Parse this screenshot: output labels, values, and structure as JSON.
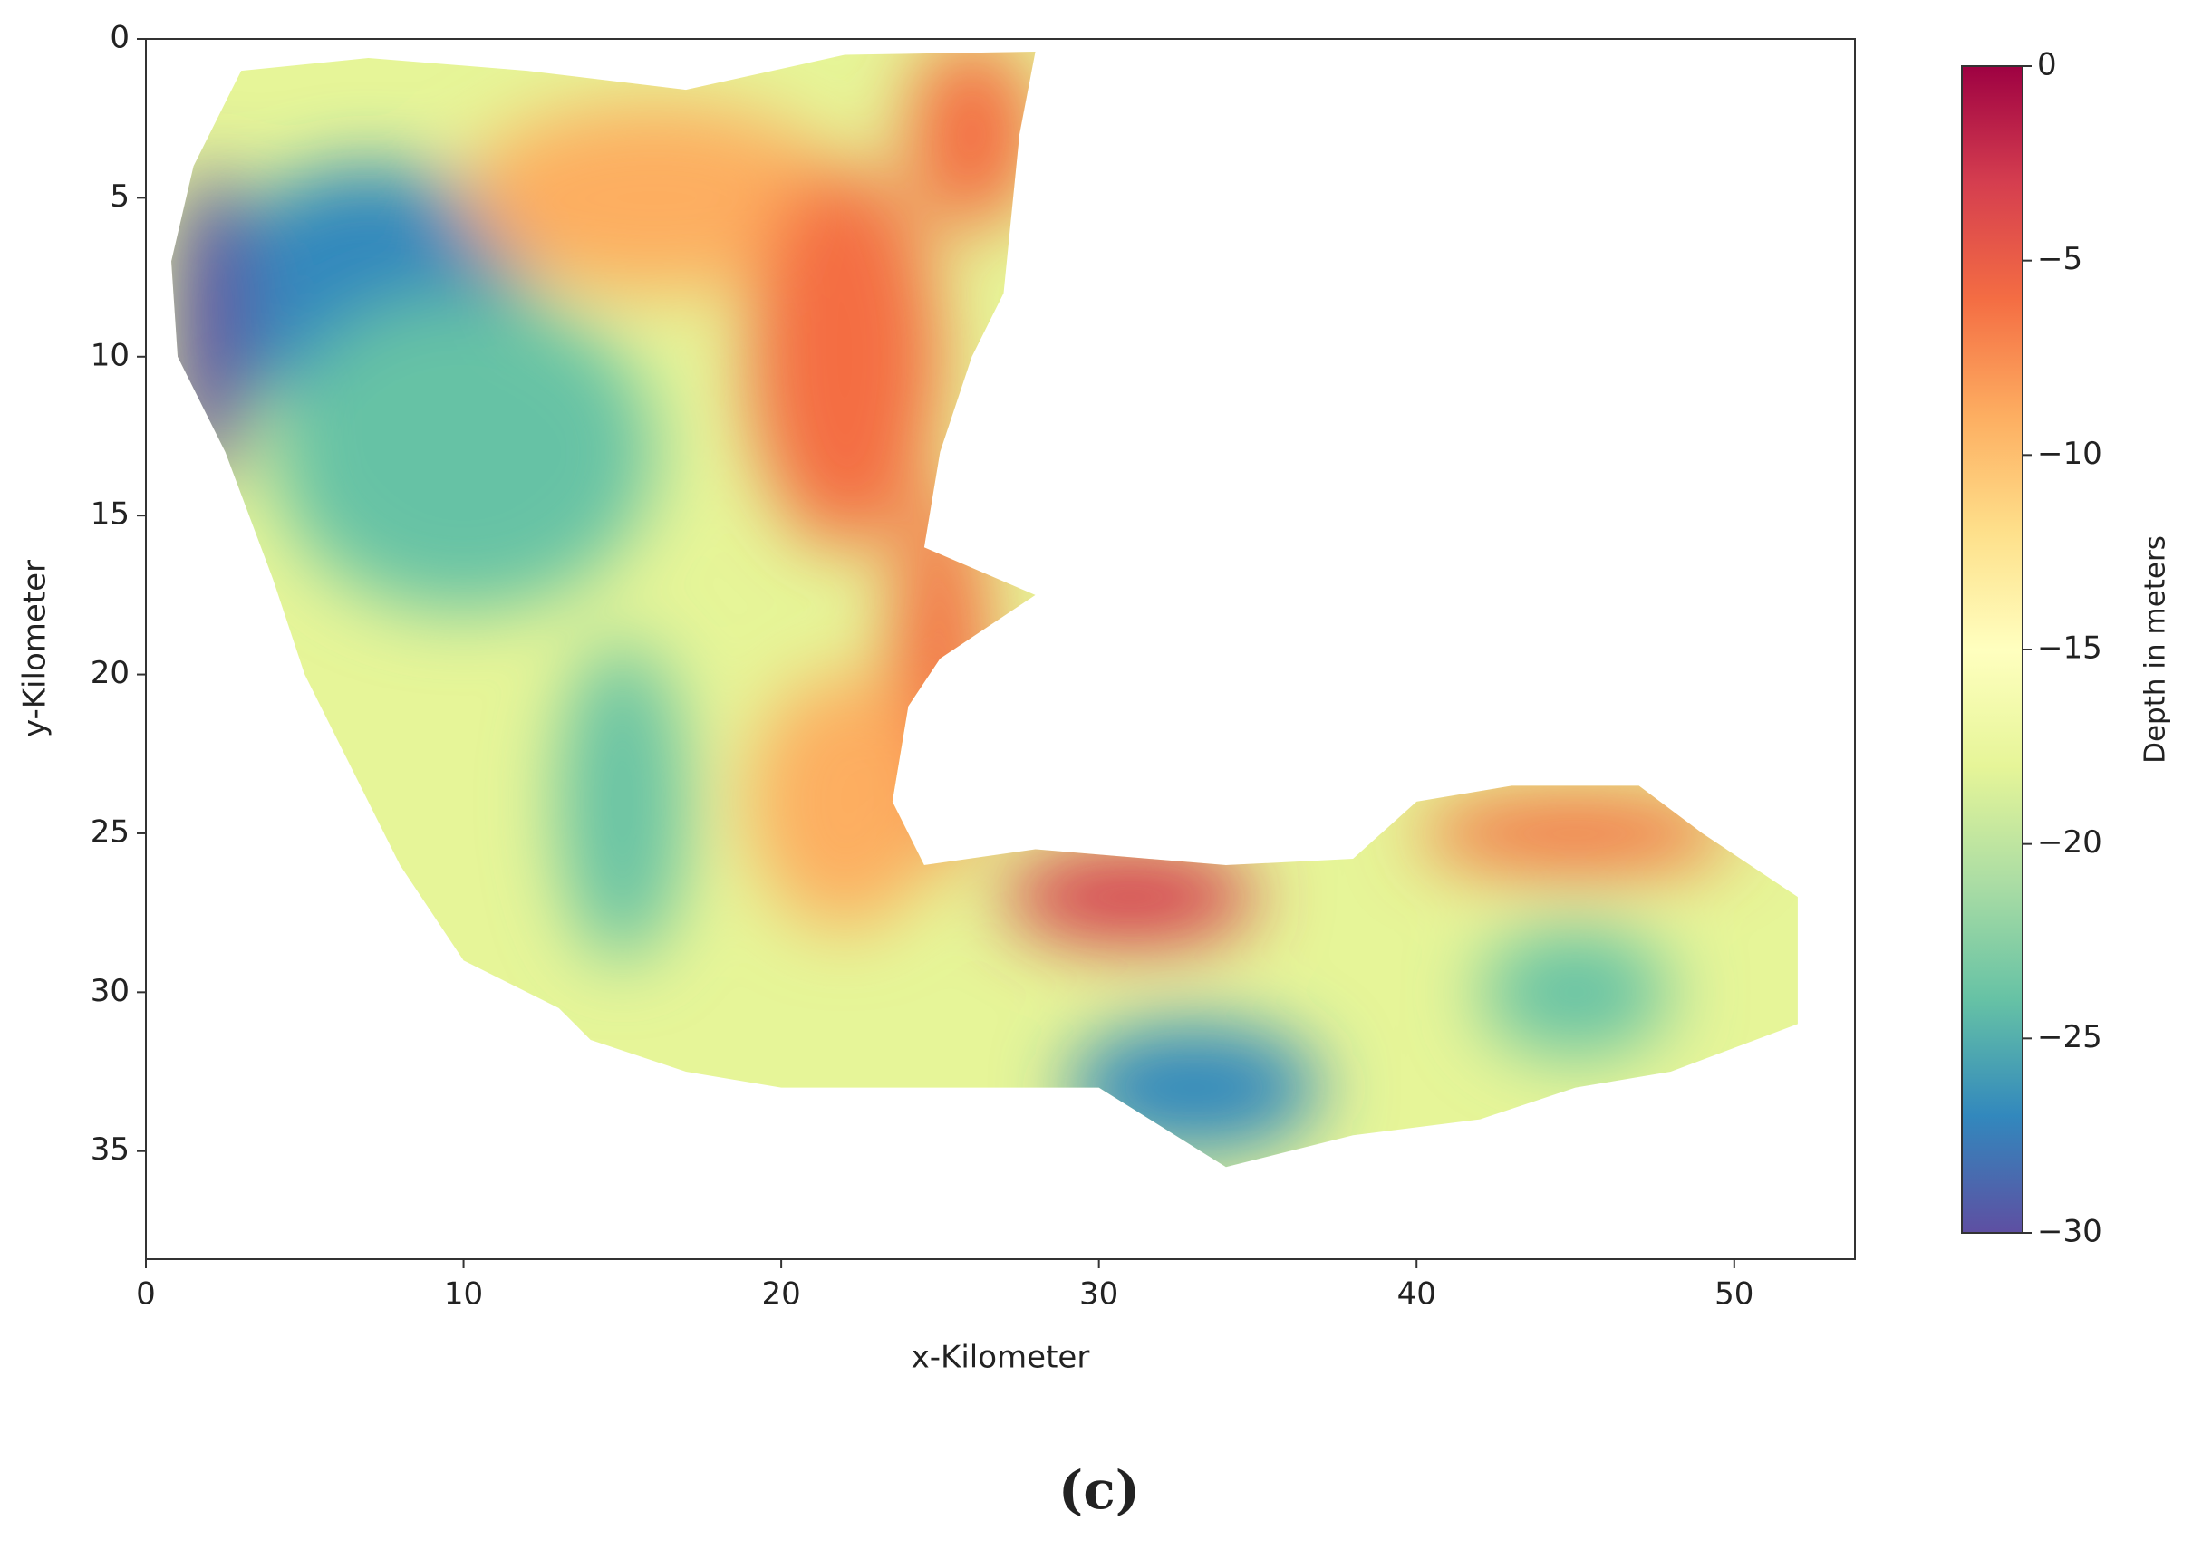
{
  "chart_data": {
    "type": "heatmap",
    "xlabel": "x-Kilometer",
    "ylabel": "y-Kilometer",
    "xlim": [
      0,
      53.8
    ],
    "xticks": [
      0,
      10,
      20,
      30,
      40,
      50
    ],
    "ylim": [
      0,
      38.4
    ],
    "yticks": [
      0,
      5,
      10,
      15,
      20,
      25,
      30,
      35
    ],
    "colorbar_label": "Depth in meters",
    "clim": [
      -30,
      0
    ],
    "cticks": [
      {
        "value": 0,
        "label": "0"
      },
      {
        "value": -5,
        "label": "−5"
      },
      {
        "value": -10,
        "label": "−10"
      },
      {
        "value": -15,
        "label": "−15"
      },
      {
        "value": -20,
        "label": "−20"
      },
      {
        "value": -25,
        "label": "−25"
      },
      {
        "value": -30,
        "label": "−30"
      }
    ],
    "colors": [
      "#5e4fa2",
      "#3288bd",
      "#66c2a5",
      "#abdda4",
      "#e6f598",
      "#ffffbf",
      "#fee08b",
      "#fdae61",
      "#f46d43",
      "#d53e4f",
      "#9e0142"
    ],
    "caption": "(c)"
  }
}
